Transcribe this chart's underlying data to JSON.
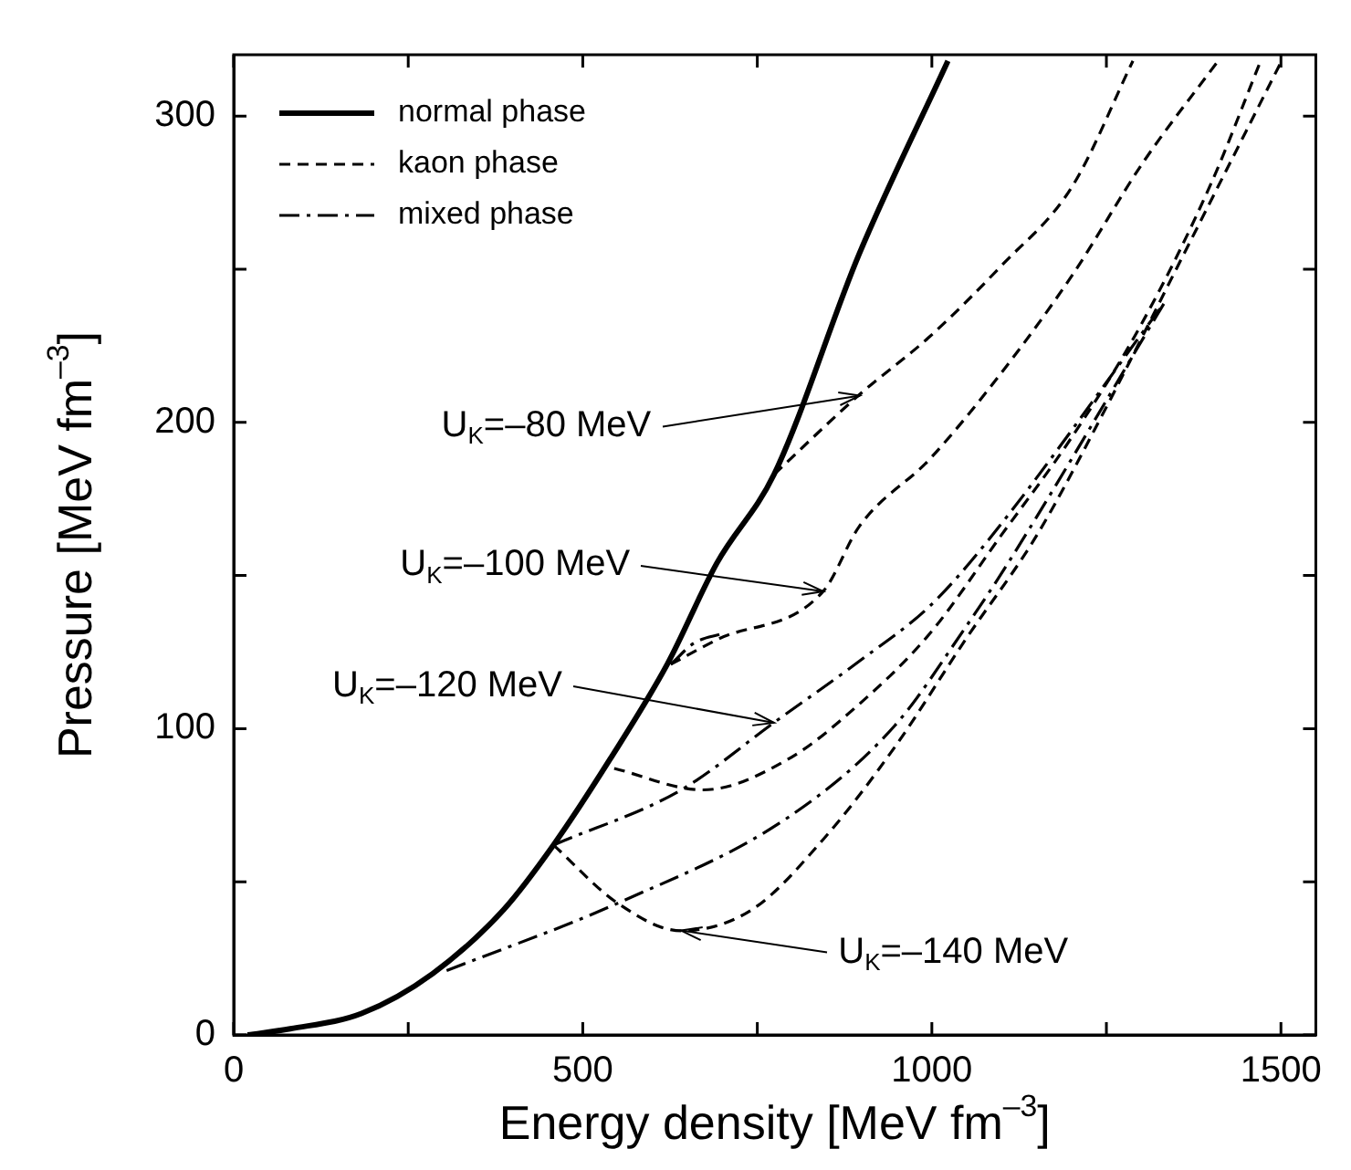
{
  "chart_data": {
    "type": "line",
    "xlabel": "Energy density [MeV fm$^{–3}$]",
    "ylabel": "Pressure [MeV fm$^{–3}$]",
    "xlim": [
      0,
      1550
    ],
    "ylim": [
      0,
      320
    ],
    "xticks": [
      0,
      {
        "value": 250,
        "label": null
      },
      500,
      {
        "value": 750,
        "label": null
      },
      1000,
      {
        "value": 1250,
        "label": null
      },
      1500
    ],
    "yticks": [
      0,
      {
        "value": 50,
        "label": null
      },
      100,
      {
        "value": 150,
        "label": null
      },
      200,
      {
        "value": 250,
        "label": null
      },
      300
    ],
    "grid": false,
    "legend": "top left",
    "series": [
      {
        "name": "normal phase",
        "color": "#000000",
        "line_style": "solid",
        "x": [
          20,
          81,
          183,
          285,
          387,
          458,
          539,
          621,
          692,
          774,
          896,
          1023
        ],
        "values": [
          0,
          2,
          7,
          20,
          41,
          62,
          90,
          121,
          154,
          183,
          255,
          318
        ]
      },
      {
        "name": "kaon phase",
        "color": "#000000",
        "line_style": "dashed",
        "x": [
          774,
          896,
          997,
          1099,
          1201,
          1288
        ],
        "values": [
          183,
          209,
          228,
          251,
          277,
          318
        ]
      },
      {
        "color": "#000000",
        "line_style": "dashed",
        "x": [
          626,
          692,
          845,
          896,
          997,
          1099,
          1201,
          1303,
          1410
        ],
        "values": [
          121,
          129,
          145,
          166,
          188,
          216,
          248,
          285,
          318
        ]
      },
      {
        "color": "#000000",
        "line_style": "dashed",
        "x": [
          545,
          672,
          794,
          896,
          997,
          1099,
          1200,
          1300,
          1400,
          1471
        ],
        "values": [
          87,
          80,
          90,
          108,
          131,
          163,
          195,
          232,
          278,
          318
        ]
      },
      {
        "color": "#000000",
        "line_style": "dashed",
        "x": [
          458,
          550,
          641,
          743,
          845,
          947,
          1048,
          1150,
          1250,
          1350,
          1450,
          1501
        ],
        "values": [
          62,
          43,
          34,
          41,
          64,
          94,
          129,
          163,
          205,
          250,
          295,
          318
        ]
      },
      {
        "name": "mixed phase",
        "color": "#000000",
        "line_style": "dashdot",
        "x": [
          626,
          660,
          700
        ],
        "values": [
          121,
          128,
          131
        ]
      },
      {
        "color": "#000000",
        "line_style": "dashdot",
        "x": [
          458,
          641,
          774,
          896,
          997,
          1079,
          1333
        ],
        "values": [
          62,
          80,
          102,
          122,
          140,
          161,
          239
        ]
      },
      {
        "color": "#000000",
        "line_style": "dashdot",
        "x": [
          305,
          550,
          794,
          947,
          1048,
          1109,
          1333
        ],
        "values": [
          21,
          43,
          71,
          101,
          133,
          154,
          239
        ]
      }
    ],
    "annotations": [
      {
        "text": "U$_{K}$=–80 MeV",
        "x": 896,
        "y": 209
      },
      {
        "text": "U$_{K}$=–100 MeV",
        "x": 845,
        "y": 145
      },
      {
        "text": "U$_{K}$=–120 MeV",
        "x": 774,
        "y": 102
      },
      {
        "text": "U$_{K}$=–140 MeV",
        "x": 641,
        "y": 34
      }
    ]
  }
}
